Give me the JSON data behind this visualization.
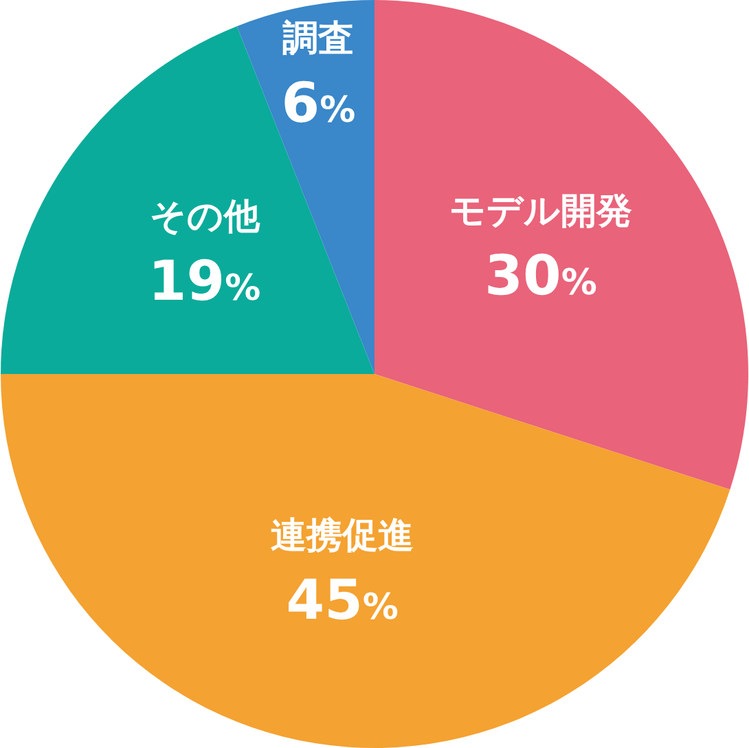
{
  "chart_data": {
    "type": "pie",
    "categories": [
      "モデル開発",
      "連携促進",
      "その他",
      "調査"
    ],
    "values": [
      30,
      45,
      19,
      6
    ],
    "colors": [
      "#e9637a",
      "#f4a231",
      "#0aab9a",
      "#3a87c9"
    ],
    "value_labels": [
      "30%",
      "45%",
      "19%",
      "6%"
    ]
  }
}
